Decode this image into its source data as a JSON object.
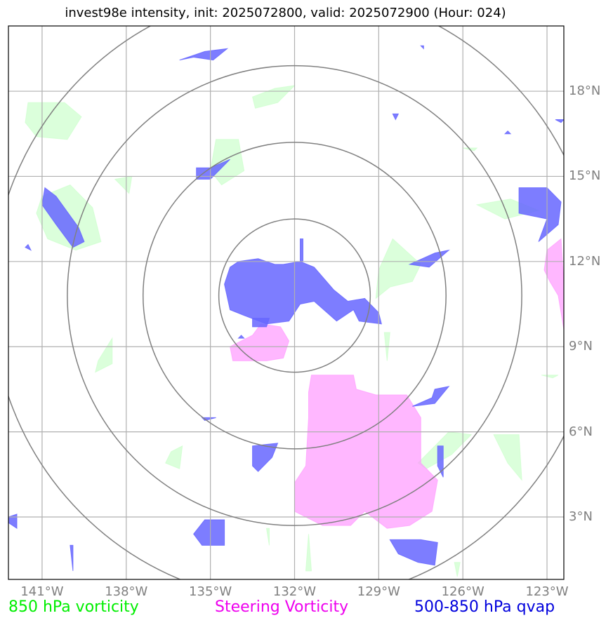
{
  "title": "invest98e intensity, init: 2025072800, valid: 2025072900 (Hour: 024)",
  "map": {
    "lon_range": [
      -142.2,
      -122.4
    ],
    "lat_range": [
      0.8,
      20.3
    ],
    "center": {
      "lon": -132.0,
      "lat": 10.8
    },
    "range_ring_degrees": [
      2.7,
      5.4,
      8.1,
      10.8
    ],
    "gridlines": true,
    "colors": {
      "vorticity_850": "#ccffcc",
      "steering_vorticity": "#ff99ff",
      "qvap_500_850": "#6666ff",
      "ring": "#808080",
      "grid": "#b0b0b0"
    }
  },
  "lat_ticks": [
    {
      "value": 3,
      "label": "3°N"
    },
    {
      "value": 6,
      "label": "6°N"
    },
    {
      "value": 9,
      "label": "9°N"
    },
    {
      "value": 12,
      "label": "12°N"
    },
    {
      "value": 15,
      "label": "15°N"
    },
    {
      "value": 18,
      "label": "18°N"
    }
  ],
  "lon_ticks": [
    {
      "value": -141,
      "label": "141°W"
    },
    {
      "value": -138,
      "label": "138°W"
    },
    {
      "value": -135,
      "label": "135°W"
    },
    {
      "value": -132,
      "label": "132°W"
    },
    {
      "value": -129,
      "label": "129°W"
    },
    {
      "value": -126,
      "label": "126°W"
    },
    {
      "value": -123,
      "label": "123°W"
    }
  ],
  "legend": [
    {
      "label": "850 hPa vorticity",
      "color": "#00ee00"
    },
    {
      "label": "Steering Vorticity",
      "color": "#ee00ee"
    },
    {
      "label": "500-850 hPa qvap",
      "color": "#0000dd"
    }
  ],
  "fields": {
    "vorticity_850": [
      [
        [
          -141.5,
          17.6
        ],
        [
          -140.2,
          17.6
        ],
        [
          -139.6,
          17.1
        ],
        [
          -140.1,
          16.3
        ],
        [
          -141.2,
          16.4
        ],
        [
          -141.6,
          16.9
        ]
      ],
      [
        [
          -133.5,
          17.8
        ],
        [
          -132.7,
          18.1
        ],
        [
          -132.0,
          18.2
        ],
        [
          -132.6,
          17.6
        ],
        [
          -133.4,
          17.4
        ]
      ],
      [
        [
          -141.0,
          14.3
        ],
        [
          -140.0,
          14.7
        ],
        [
          -139.2,
          13.9
        ],
        [
          -138.9,
          12.7
        ],
        [
          -139.8,
          12.4
        ],
        [
          -140.8,
          12.8
        ],
        [
          -141.2,
          13.7
        ]
      ],
      [
        [
          -135.0,
          15.2
        ],
        [
          -134.8,
          16.3
        ],
        [
          -134.0,
          16.3
        ],
        [
          -133.8,
          15.2
        ],
        [
          -134.6,
          14.7
        ]
      ],
      [
        [
          -138.4,
          14.9
        ],
        [
          -137.8,
          15.0
        ],
        [
          -137.9,
          14.4
        ]
      ],
      [
        [
          -128.5,
          12.8
        ],
        [
          -127.5,
          11.9
        ],
        [
          -127.8,
          11.3
        ],
        [
          -128.6,
          11.1
        ],
        [
          -129.1,
          10.7
        ],
        [
          -129.0,
          11.7
        ]
      ],
      [
        [
          -125.5,
          14.0
        ],
        [
          -124.3,
          14.2
        ],
        [
          -123.3,
          13.8
        ],
        [
          -124.5,
          13.5
        ]
      ],
      [
        [
          -126.0,
          16.0
        ],
        [
          -125.5,
          16.0
        ],
        [
          -125.6,
          15.9
        ]
      ],
      [
        [
          -139.0,
          8.5
        ],
        [
          -138.5,
          9.3
        ],
        [
          -138.5,
          8.4
        ],
        [
          -139.1,
          8.1
        ]
      ],
      [
        [
          -136.4,
          5.3
        ],
        [
          -136.0,
          5.5
        ],
        [
          -136.1,
          4.7
        ],
        [
          -136.6,
          4.9
        ]
      ],
      [
        [
          -127.6,
          4.9
        ],
        [
          -126.5,
          6.0
        ],
        [
          -125.7,
          5.9
        ],
        [
          -126.4,
          5.2
        ],
        [
          -127.3,
          4.7
        ]
      ],
      [
        [
          -124.9,
          5.9
        ],
        [
          -124.0,
          5.9
        ],
        [
          -123.9,
          4.3
        ],
        [
          -124.4,
          4.9
        ]
      ],
      [
        [
          -128.8,
          9.5
        ],
        [
          -128.6,
          9.5
        ],
        [
          -128.7,
          8.5
        ]
      ],
      [
        [
          -131.6,
          1.1
        ],
        [
          -131.4,
          1.1
        ],
        [
          -131.5,
          2.4
        ]
      ],
      [
        [
          -133.0,
          2.6
        ],
        [
          -132.9,
          2.6
        ],
        [
          -132.9,
          2.0
        ]
      ],
      [
        [
          -126.3,
          1.4
        ],
        [
          -126.1,
          1.4
        ],
        [
          -126.2,
          0.9
        ]
      ],
      [
        [
          -123.2,
          8.0
        ],
        [
          -122.6,
          8.0
        ],
        [
          -122.8,
          7.9
        ]
      ]
    ],
    "steering_vorticity": [
      [
        [
          -131.4,
          8.0
        ],
        [
          -129.9,
          8.0
        ],
        [
          -129.8,
          7.5
        ],
        [
          -129.1,
          7.3
        ],
        [
          -128.0,
          7.3
        ],
        [
          -127.5,
          6.5
        ],
        [
          -127.5,
          4.9
        ],
        [
          -126.9,
          4.3
        ],
        [
          -127.1,
          3.2
        ],
        [
          -127.9,
          2.7
        ],
        [
          -128.7,
          2.6
        ],
        [
          -129.5,
          3.2
        ],
        [
          -130.0,
          2.7
        ],
        [
          -131.0,
          2.7
        ],
        [
          -132.0,
          3.2
        ],
        [
          -132.0,
          4.2
        ],
        [
          -131.6,
          4.8
        ],
        [
          -131.5,
          6.5
        ],
        [
          -131.5,
          7.4
        ]
      ],
      [
        [
          -133.2,
          9.8
        ],
        [
          -132.5,
          9.7
        ],
        [
          -132.2,
          9.2
        ],
        [
          -132.4,
          8.6
        ],
        [
          -133.0,
          8.5
        ],
        [
          -134.2,
          8.5
        ],
        [
          -134.3,
          9.0
        ],
        [
          -133.5,
          9.4
        ]
      ],
      [
        [
          -123.0,
          12.4
        ],
        [
          -122.5,
          12.8
        ],
        [
          -122.4,
          11.2
        ],
        [
          -122.4,
          9.6
        ],
        [
          -122.6,
          10.8
        ],
        [
          -122.9,
          11.3
        ],
        [
          -123.1,
          11.7
        ]
      ]
    ],
    "qvap_500_850": [
      [
        [
          -134.0,
          12.0
        ],
        [
          -133.3,
          12.1
        ],
        [
          -132.7,
          11.9
        ],
        [
          -132.4,
          11.9
        ],
        [
          -131.8,
          12.0
        ],
        [
          -131.3,
          11.8
        ],
        [
          -130.6,
          11.0
        ],
        [
          -130.1,
          10.6
        ],
        [
          -129.5,
          10.7
        ],
        [
          -129.0,
          10.2
        ],
        [
          -128.9,
          9.8
        ],
        [
          -129.7,
          9.9
        ],
        [
          -129.9,
          10.3
        ],
        [
          -130.5,
          9.9
        ],
        [
          -131.3,
          10.6
        ],
        [
          -131.8,
          10.5
        ],
        [
          -132.2,
          9.9
        ],
        [
          -133.0,
          9.8
        ],
        [
          -133.8,
          10.1
        ],
        [
          -134.3,
          10.3
        ],
        [
          -134.5,
          11.2
        ],
        [
          -134.3,
          11.8
        ]
      ],
      [
        [
          -135.5,
          15.3
        ],
        [
          -135.0,
          15.3
        ],
        [
          -134.3,
          15.6
        ],
        [
          -135.0,
          14.9
        ],
        [
          -135.5,
          14.9
        ]
      ],
      [
        [
          -140.9,
          14.6
        ],
        [
          -140.5,
          14.3
        ],
        [
          -139.7,
          13.2
        ],
        [
          -139.5,
          12.7
        ],
        [
          -139.9,
          12.5
        ],
        [
          -140.5,
          13.3
        ],
        [
          -141.0,
          14.0
        ]
      ],
      [
        [
          -135.2,
          19.4
        ],
        [
          -134.4,
          19.5
        ],
        [
          -134.9,
          19.1
        ],
        [
          -135.6,
          19.2
        ],
        [
          -136.1,
          19.1
        ],
        [
          -135.5,
          19.3
        ]
      ],
      [
        [
          -124.0,
          14.6
        ],
        [
          -123.0,
          14.6
        ],
        [
          -122.5,
          14.1
        ],
        [
          -122.6,
          13.3
        ],
        [
          -123.3,
          12.7
        ],
        [
          -123.0,
          13.5
        ],
        [
          -124.0,
          13.7
        ]
      ],
      [
        [
          -127.0,
          12.3
        ],
        [
          -126.5,
          12.4
        ],
        [
          -127.2,
          11.8
        ],
        [
          -127.9,
          11.9
        ]
      ],
      [
        [
          -127.0,
          7.5
        ],
        [
          -126.5,
          7.6
        ],
        [
          -127.0,
          7.0
        ],
        [
          -127.8,
          6.9
        ],
        [
          -127.1,
          7.2
        ]
      ],
      [
        [
          -133.5,
          5.5
        ],
        [
          -132.6,
          5.6
        ],
        [
          -132.8,
          5.1
        ],
        [
          -133.3,
          4.6
        ],
        [
          -133.5,
          4.8
        ]
      ],
      [
        [
          -135.2,
          2.9
        ],
        [
          -134.5,
          2.9
        ],
        [
          -134.5,
          2.0
        ],
        [
          -135.3,
          2.0
        ],
        [
          -135.6,
          2.4
        ]
      ],
      [
        [
          -128.6,
          2.2
        ],
        [
          -127.5,
          2.2
        ],
        [
          -126.9,
          2.1
        ],
        [
          -127.0,
          1.3
        ],
        [
          -127.6,
          1.4
        ],
        [
          -128.3,
          1.7
        ]
      ],
      [
        [
          -126.9,
          5.5
        ],
        [
          -126.7,
          5.5
        ],
        [
          -126.7,
          4.4
        ],
        [
          -126.9,
          4.8
        ]
      ],
      [
        [
          -142.2,
          3.0
        ],
        [
          -141.9,
          3.1
        ],
        [
          -141.9,
          2.6
        ],
        [
          -142.2,
          2.8
        ]
      ],
      [
        [
          -135.3,
          6.5
        ],
        [
          -134.8,
          6.5
        ],
        [
          -135.2,
          6.4
        ]
      ],
      [
        [
          -133.5,
          10.0
        ],
        [
          -132.9,
          10.0
        ],
        [
          -133.0,
          9.7
        ],
        [
          -133.5,
          9.7
        ]
      ],
      [
        [
          -131.8,
          12.8
        ],
        [
          -131.7,
          12.8
        ],
        [
          -131.7,
          12.0
        ],
        [
          -131.8,
          12.0
        ]
      ],
      [
        [
          -128.5,
          17.2
        ],
        [
          -128.3,
          17.2
        ],
        [
          -128.4,
          17.0
        ]
      ],
      [
        [
          -127.5,
          19.6
        ],
        [
          -127.4,
          19.6
        ],
        [
          -127.4,
          19.5
        ]
      ],
      [
        [
          -124.5,
          16.5
        ],
        [
          -124.4,
          16.6
        ],
        [
          -124.3,
          16.5
        ]
      ],
      [
        [
          -122.7,
          17.0
        ],
        [
          -122.4,
          17.0
        ],
        [
          -122.5,
          16.9
        ]
      ],
      [
        [
          -141.6,
          12.5
        ],
        [
          -141.5,
          12.6
        ],
        [
          -141.4,
          12.4
        ]
      ],
      [
        [
          -134.0,
          9.3
        ],
        [
          -133.9,
          9.4
        ],
        [
          -133.8,
          9.3
        ]
      ],
      [
        [
          -140.0,
          2.0
        ],
        [
          -139.9,
          2.0
        ],
        [
          -139.9,
          1.1
        ]
      ]
    ]
  }
}
